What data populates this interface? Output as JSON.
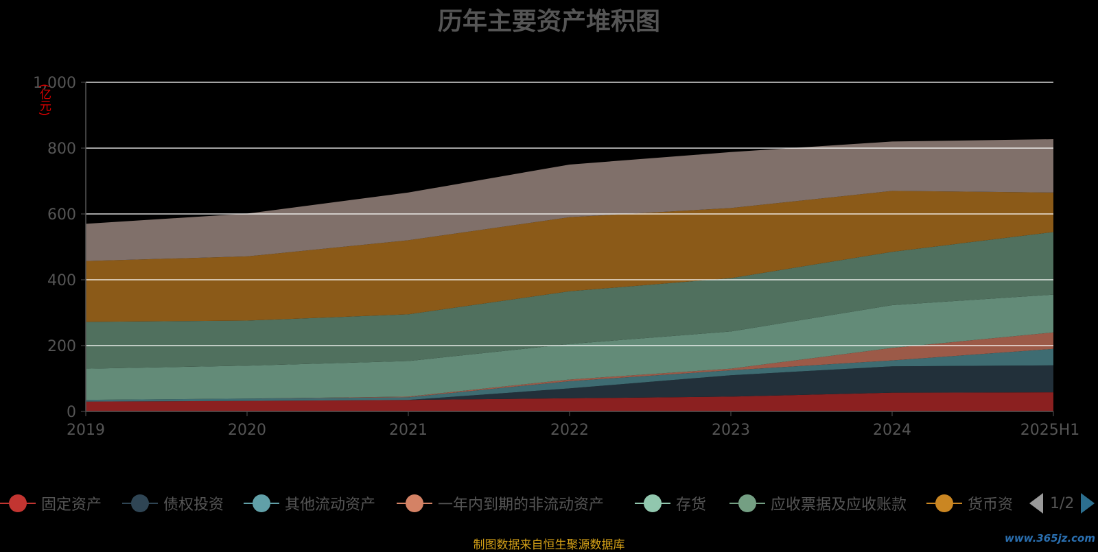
{
  "title": "历年主要资产堆积图",
  "unit_label": "(亿元)",
  "footer": "制图数据来自恒生聚源数据库",
  "watermark": "www.365jz.com",
  "pager": {
    "text": "1/2"
  },
  "chart_data": {
    "type": "area",
    "title": "历年主要资产堆积图",
    "ylabel": "(亿元)",
    "stacked": true,
    "ylim": [
      0,
      1000
    ],
    "yticks": [
      0,
      200,
      400,
      600,
      800,
      1000
    ],
    "ytick_labels": [
      "0",
      "200",
      "400",
      "600",
      "800",
      "1,000"
    ],
    "x": [
      "2019",
      "2020",
      "2021",
      "2022",
      "2023",
      "2024",
      "2025H1"
    ],
    "grid": true,
    "series": [
      {
        "name": "固定资产",
        "color": "#8b2020",
        "legend_color": "#c23531",
        "values": [
          30,
          32,
          35,
          40,
          45,
          57,
          58
        ]
      },
      {
        "name": "债权投资",
        "color": "#22303a",
        "legend_color": "#2f4554",
        "values": [
          0,
          0,
          0,
          30,
          65,
          80,
          82
        ]
      },
      {
        "name": "其他流动资产",
        "color": "#3e6c72",
        "legend_color": "#61a0a8",
        "values": [
          5,
          7,
          8,
          22,
          15,
          18,
          50
        ]
      },
      {
        "name": "一年内到期的非流动资产",
        "color": "#9c5a48",
        "legend_color": "#d48265",
        "values": [
          0,
          0,
          2,
          5,
          5,
          38,
          50
        ]
      },
      {
        "name": "存货",
        "color": "#638b78",
        "legend_color": "#91c7ae",
        "values": [
          95,
          100,
          108,
          108,
          113,
          130,
          115
        ]
      },
      {
        "name": "应收票据及应收账款",
        "color": "#50705e",
        "legend_color": "#749f83",
        "values": [
          142,
          137,
          142,
          160,
          162,
          162,
          190
        ]
      },
      {
        "name": "货币资",
        "color": "#8b5a18",
        "legend_color": "#ca8622",
        "values": [
          185,
          195,
          225,
          225,
          213,
          185,
          120
        ]
      },
      {
        "name": "",
        "color": "#80706a",
        "legend_color": "#bda29a",
        "values": [
          113,
          130,
          145,
          160,
          170,
          150,
          162
        ]
      }
    ]
  }
}
